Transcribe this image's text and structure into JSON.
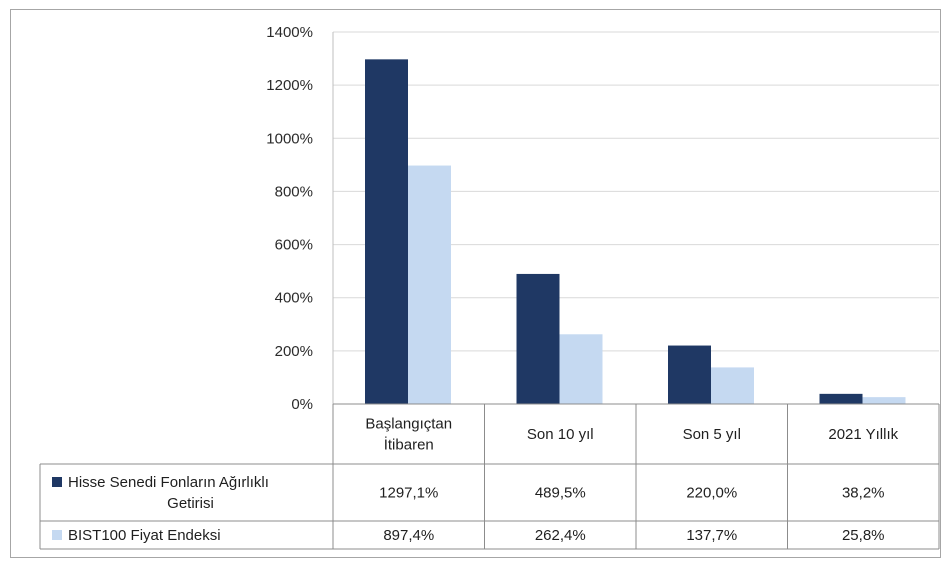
{
  "chart_data": {
    "type": "bar",
    "categories": [
      "Başlangıçtan İtibaren",
      "Son 10 yıl",
      "Son 5 yıl",
      "2021 Yıllık"
    ],
    "category_lines": [
      [
        "Başlangıçtan",
        "İtibaren"
      ],
      [
        "Son 10 yıl"
      ],
      [
        "Son 5 yıl"
      ],
      [
        "2021 Yıllık"
      ]
    ],
    "series": [
      {
        "name": "Hisse Senedi Fonların Ağırlıklı Getirisi",
        "name_lines": [
          "Hisse Senedi Fonların Ağırlıklı",
          "Getirisi"
        ],
        "values": [
          1297.1,
          489.5,
          220.0,
          38.2
        ],
        "labels": [
          "1297,1%",
          "489,5%",
          "220,0%",
          "38,2%"
        ],
        "color": "#1f3864"
      },
      {
        "name": "BIST100 Fiyat Endeksi",
        "name_lines": [
          "BIST100 Fiyat Endeksi"
        ],
        "values": [
          897.4,
          262.4,
          137.7,
          25.8
        ],
        "labels": [
          "897,4%",
          "262,4%",
          "137,7%",
          "25,8%"
        ],
        "color": "#c5d9f1"
      }
    ],
    "y_ticks": [
      "0%",
      "200%",
      "400%",
      "600%",
      "800%",
      "1000%",
      "1200%",
      "1400%"
    ],
    "ylim": [
      0,
      1400
    ],
    "grid": true,
    "legend": "data-table"
  }
}
